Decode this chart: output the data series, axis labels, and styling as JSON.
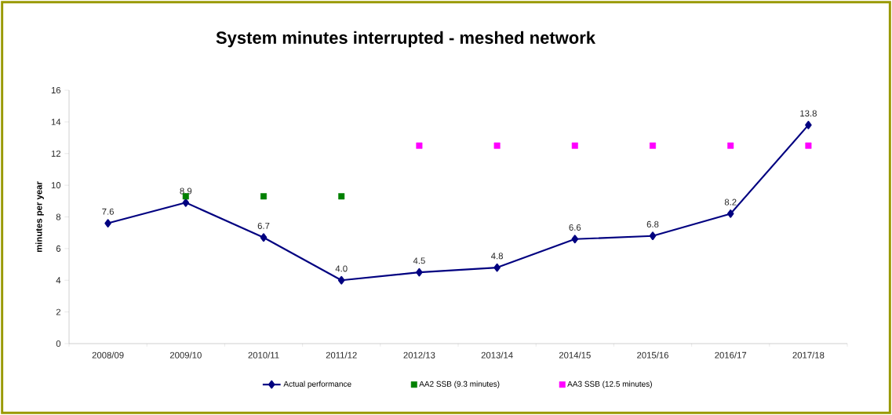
{
  "chart_data": {
    "type": "line",
    "title": "System minutes interrupted - meshed network",
    "ylabel": "minutes per year",
    "categories": [
      "2008/09",
      "2009/10",
      "2010/11",
      "2011/12",
      "2012/13",
      "2013/14",
      "2014/15",
      "2015/16",
      "2016/17",
      "2017/18"
    ],
    "ylim": [
      0,
      16
    ],
    "yticks": [
      0,
      2,
      4,
      6,
      8,
      10,
      12,
      14,
      16
    ],
    "grid": false,
    "legend": "bottom",
    "series": [
      {
        "name": "Actual performance",
        "color": "#000080",
        "marker": "diamond",
        "values": [
          7.6,
          8.9,
          6.7,
          4.0,
          4.5,
          4.8,
          6.6,
          6.8,
          8.2,
          13.8
        ],
        "value_labels": [
          "7.6",
          "8.9",
          "6.7",
          "4.0",
          "4.5",
          "4.8",
          "6.6",
          "6.8",
          "8.2",
          "13.8"
        ]
      },
      {
        "name": "AA2 SSB (9.3 minutes)",
        "type": "scatter",
        "color": "#008000",
        "marker": "square",
        "values": [
          null,
          9.3,
          9.3,
          9.3,
          null,
          null,
          null,
          null,
          null,
          null
        ]
      },
      {
        "name": "AA3 SSB (12.5 minutes)",
        "type": "scatter",
        "color": "#ff00ff",
        "marker": "square",
        "values": [
          null,
          null,
          null,
          null,
          12.5,
          12.5,
          12.5,
          12.5,
          12.5,
          12.5
        ]
      }
    ]
  }
}
